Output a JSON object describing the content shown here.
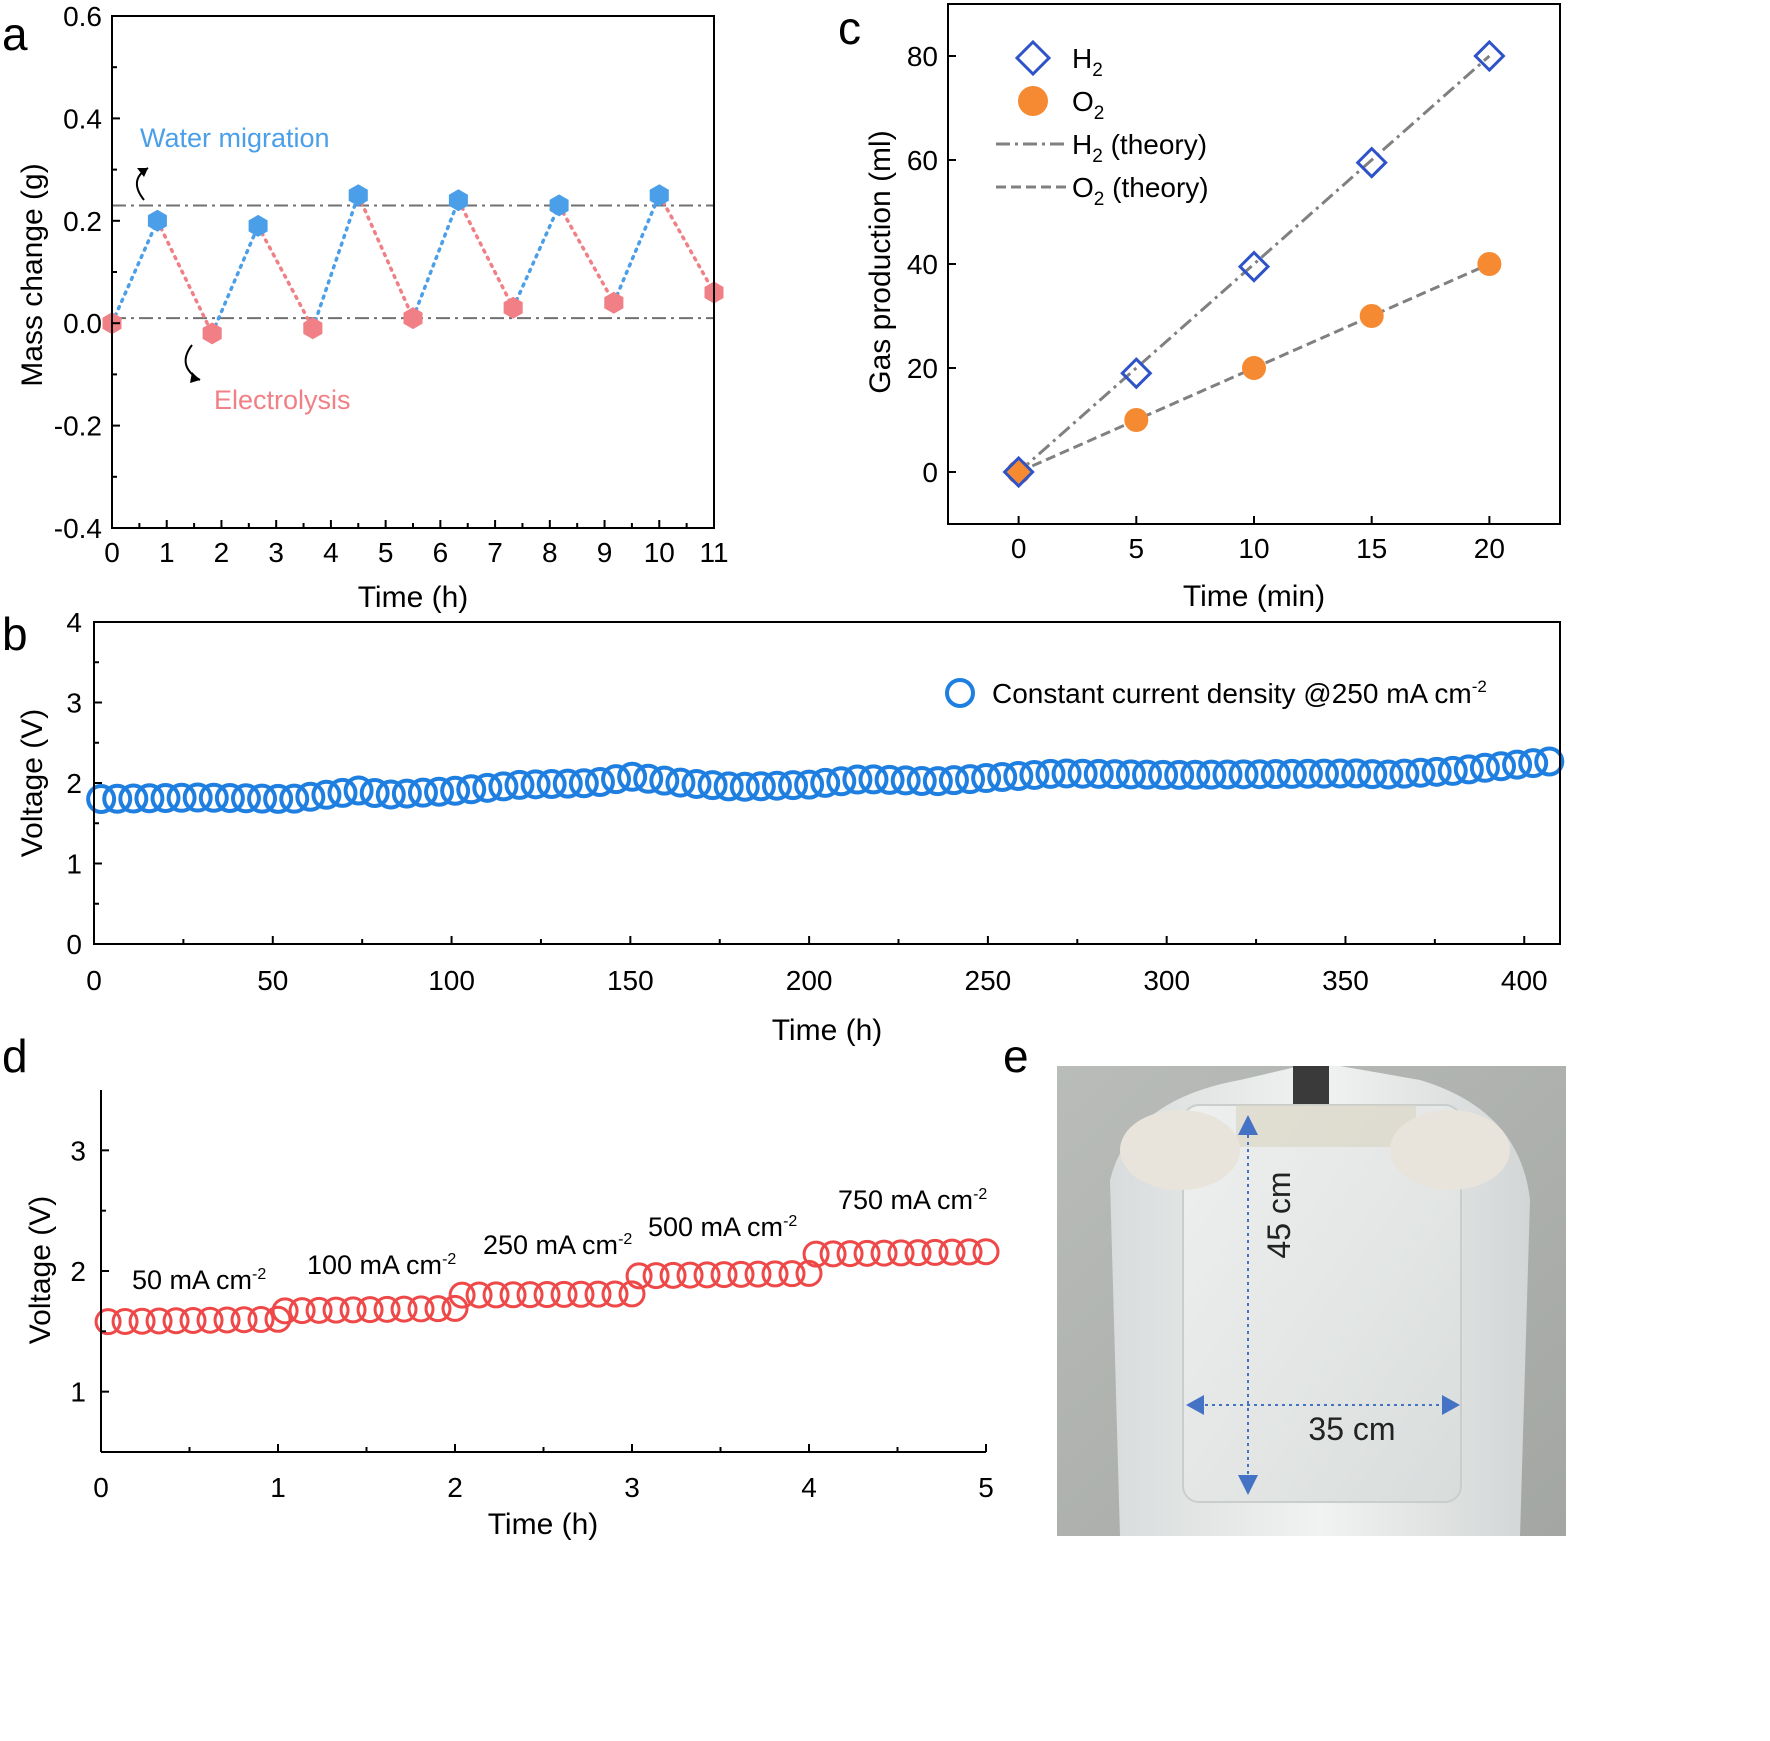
{
  "panels": {
    "a": "a",
    "b": "b",
    "c": "c",
    "d": "d",
    "e": "e"
  },
  "colors": {
    "water": "#4a9fe8",
    "electrolysis": "#f07f86",
    "h2": "#2e52c8",
    "o2": "#f58a32",
    "theory": "#808080",
    "voltage_b": "#1f7fe0",
    "voltage_d": "#ee4848",
    "arrow_e": "#4472c4"
  },
  "chart_data": [
    {
      "id": "a",
      "type": "line",
      "xlabel": "Time (h)",
      "ylabel": "Mass change (g)",
      "xlim": [
        0,
        11
      ],
      "ylim": [
        -0.4,
        0.6
      ],
      "xticks": [
        "0",
        "1",
        "2",
        "3",
        "4",
        "5",
        "6",
        "7",
        "8",
        "9",
        "10",
        "11"
      ],
      "yticks": [
        "-0.4",
        "-0.2",
        "0.0",
        "0.2",
        "0.4",
        "0.6"
      ],
      "points": [
        {
          "x": 0,
          "y": 0.0,
          "phase": "electrolysis"
        },
        {
          "x": 0.83,
          "y": 0.2,
          "phase": "water"
        },
        {
          "x": 1.83,
          "y": -0.02,
          "phase": "electrolysis"
        },
        {
          "x": 2.67,
          "y": 0.19,
          "phase": "water"
        },
        {
          "x": 3.67,
          "y": -0.01,
          "phase": "electrolysis"
        },
        {
          "x": 4.5,
          "y": 0.25,
          "phase": "water"
        },
        {
          "x": 5.5,
          "y": 0.01,
          "phase": "electrolysis"
        },
        {
          "x": 6.33,
          "y": 0.24,
          "phase": "water"
        },
        {
          "x": 7.33,
          "y": 0.03,
          "phase": "electrolysis"
        },
        {
          "x": 8.17,
          "y": 0.23,
          "phase": "water"
        },
        {
          "x": 9.17,
          "y": 0.04,
          "phase": "electrolysis"
        },
        {
          "x": 10.0,
          "y": 0.25,
          "phase": "water"
        },
        {
          "x": 11.0,
          "y": 0.06,
          "phase": "electrolysis"
        }
      ],
      "reference_lines": [
        0.23,
        0.01
      ],
      "annotations": [
        "Water migration",
        "Electrolysis"
      ],
      "grid": false
    },
    {
      "id": "b",
      "type": "scatter",
      "xlabel": "Time (h)",
      "ylabel": "Voltage (V)",
      "xlim": [
        0,
        410
      ],
      "ylim": [
        0,
        4
      ],
      "xticks": [
        "0",
        "50",
        "100",
        "150",
        "200",
        "250",
        "300",
        "350",
        "400"
      ],
      "yticks": [
        "0",
        "1",
        "2",
        "3",
        "4"
      ],
      "legend_label": "Constant current density @250 mA cm",
      "legend_sup": "-2",
      "legend_position": "top-right",
      "series_keypoints": [
        {
          "x": 0,
          "y": 1.8
        },
        {
          "x": 30,
          "y": 1.82
        },
        {
          "x": 55,
          "y": 1.8
        },
        {
          "x": 70,
          "y": 1.88
        },
        {
          "x": 76,
          "y": 1.92
        },
        {
          "x": 80,
          "y": 1.85
        },
        {
          "x": 100,
          "y": 1.9
        },
        {
          "x": 120,
          "y": 1.98
        },
        {
          "x": 140,
          "y": 2.0
        },
        {
          "x": 150,
          "y": 2.08
        },
        {
          "x": 165,
          "y": 2.0
        },
        {
          "x": 180,
          "y": 1.95
        },
        {
          "x": 200,
          "y": 1.98
        },
        {
          "x": 215,
          "y": 2.05
        },
        {
          "x": 235,
          "y": 2.02
        },
        {
          "x": 270,
          "y": 2.12
        },
        {
          "x": 300,
          "y": 2.1
        },
        {
          "x": 355,
          "y": 2.12
        },
        {
          "x": 360,
          "y": 2.1
        },
        {
          "x": 380,
          "y": 2.15
        },
        {
          "x": 410,
          "y": 2.28
        }
      ],
      "grid": false
    },
    {
      "id": "c",
      "type": "scatter",
      "xlabel": "Time (min)",
      "ylabel": "Gas production (ml)",
      "xlim": [
        -3,
        23
      ],
      "ylim": [
        -10,
        90
      ],
      "xticks": [
        "0",
        "5",
        "10",
        "15",
        "20"
      ],
      "yticks": [
        "0",
        "20",
        "40",
        "60",
        "80"
      ],
      "x": [
        0,
        5,
        10,
        15,
        20
      ],
      "series": [
        {
          "name": "H",
          "sub": "2",
          "marker": "diamond",
          "values": [
            0,
            19,
            39.5,
            59.5,
            80
          ]
        },
        {
          "name": "O",
          "sub": "2",
          "marker": "circle",
          "values": [
            0,
            10,
            20,
            30,
            40
          ]
        }
      ],
      "theory": [
        {
          "name": "H",
          "sub": "2",
          "suffix": " (theory)",
          "dash": "dash-dot",
          "values": [
            0,
            20,
            40,
            60,
            80
          ]
        },
        {
          "name": "O",
          "sub": "2",
          "suffix": " (theory)",
          "dash": "dash",
          "values": [
            0,
            10,
            20,
            30,
            40
          ]
        }
      ],
      "legend_position": "top-left",
      "grid": false
    },
    {
      "id": "d",
      "type": "scatter",
      "xlabel": "Time (h)",
      "ylabel": "Voltage (V)",
      "xlim": [
        0,
        5
      ],
      "ylim": [
        0.5,
        3.5
      ],
      "xticks": [
        "0",
        "1",
        "2",
        "3",
        "4",
        "5"
      ],
      "yticks": [
        "1",
        "2",
        "3"
      ],
      "steps": [
        {
          "label": "50 mA cm",
          "sup": "-2",
          "t0": 0,
          "t1": 1,
          "v0": 1.58,
          "v1": 1.6
        },
        {
          "label": "100 mA cm",
          "sup": "-2",
          "t0": 1,
          "t1": 2,
          "v0": 1.67,
          "v1": 1.69
        },
        {
          "label": "250 mA cm",
          "sup": "-2",
          "t0": 2,
          "t1": 3,
          "v0": 1.8,
          "v1": 1.81
        },
        {
          "label": "500 mA cm",
          "sup": "-2",
          "t0": 3,
          "t1": 4,
          "v0": 1.96,
          "v1": 1.98
        },
        {
          "label": "750 mA cm",
          "sup": "-2",
          "t0": 4,
          "t1": 5,
          "v0": 2.14,
          "v1": 2.16
        }
      ],
      "grid": false
    }
  ],
  "photo": {
    "height_label": "45 cm",
    "width_label": "35 cm"
  }
}
